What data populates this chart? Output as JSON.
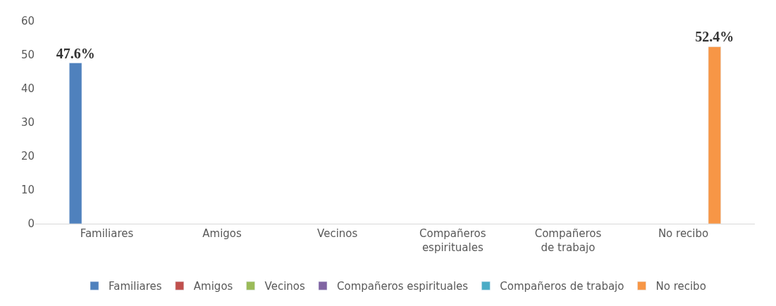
{
  "chart_data": {
    "type": "bar",
    "categories": [
      "Familiares",
      "Amigos",
      "Vecinos",
      "Compañeros espirituales",
      "Compañeros de trabajo",
      "No recibo"
    ],
    "series": [
      {
        "name": "Familiares",
        "color": "#4f81bd",
        "values": [
          47.6,
          null,
          null,
          null,
          null,
          null
        ],
        "value_labels": [
          "47.6%",
          null,
          null,
          null,
          null,
          null
        ]
      },
      {
        "name": "Amigos",
        "color": "#c0504d",
        "values": [
          null,
          null,
          null,
          null,
          null,
          null
        ]
      },
      {
        "name": "Vecinos",
        "color": "#9bbb59",
        "values": [
          null,
          null,
          null,
          null,
          null,
          null
        ]
      },
      {
        "name": "Compañeros espirituales",
        "color": "#8064a2",
        "values": [
          null,
          null,
          null,
          null,
          null,
          null
        ]
      },
      {
        "name": "Compañeros de trabajo",
        "color": "#4bacc6",
        "values": [
          null,
          null,
          null,
          null,
          null,
          null
        ]
      },
      {
        "name": "No recibo",
        "color": "#f79646",
        "values": [
          null,
          null,
          null,
          null,
          null,
          52.4
        ],
        "value_labels": [
          null,
          null,
          null,
          null,
          null,
          "52.4%"
        ]
      }
    ],
    "ylim": [
      0,
      60
    ],
    "yticks": [
      0,
      10,
      20,
      30,
      40,
      50,
      60
    ],
    "grid": false,
    "legend": "bottom"
  }
}
